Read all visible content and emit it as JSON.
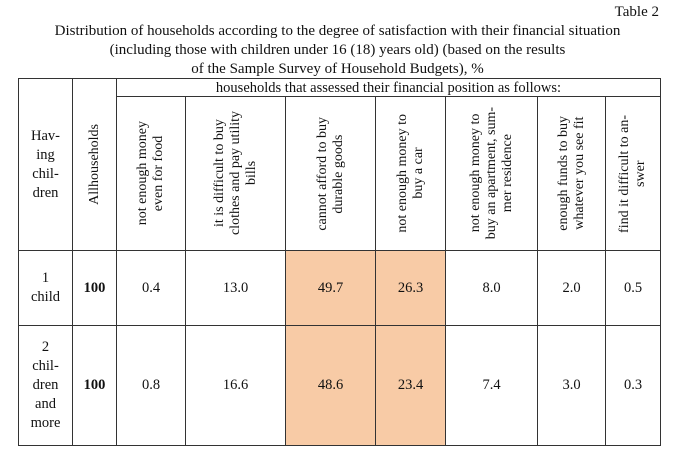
{
  "table_label": "Table 2",
  "title": [
    "Distribution of households according to the degree of satisfaction with their financial situation",
    "(including those with children under 16 (18) years old) (based on the results",
    "of the Sample Survey of Household Budgets), %"
  ],
  "table": {
    "row_header": "Hav-\ning\nchil-\ndren",
    "total_header": "Allhouseholds",
    "group_header": "households that assessed their financial position as follows:",
    "columns": [
      "not enough money\neven for food",
      "it is difficult to buy\nclothes and pay utility\nbills",
      "cannot afford to buy\ndurable goods",
      "not enough money to\nbuy a car",
      "not enough money to\nbuy an apartment, sum-\nmer residence",
      "enough funds to buy\nwhatever you see fit",
      "find it difficult to an-\nswer"
    ],
    "rows": [
      {
        "label": "1\nchild",
        "total": "100",
        "values": [
          "0.4",
          "13.0",
          "49.7",
          "26.3",
          "8.0",
          "2.0",
          "0.5"
        ]
      },
      {
        "label": "2\nchil-\ndren\nand\nmore",
        "total": "100",
        "values": [
          "0.8",
          "16.6",
          "48.6",
          "23.4",
          "7.4",
          "3.0",
          "0.3"
        ]
      }
    ]
  }
}
